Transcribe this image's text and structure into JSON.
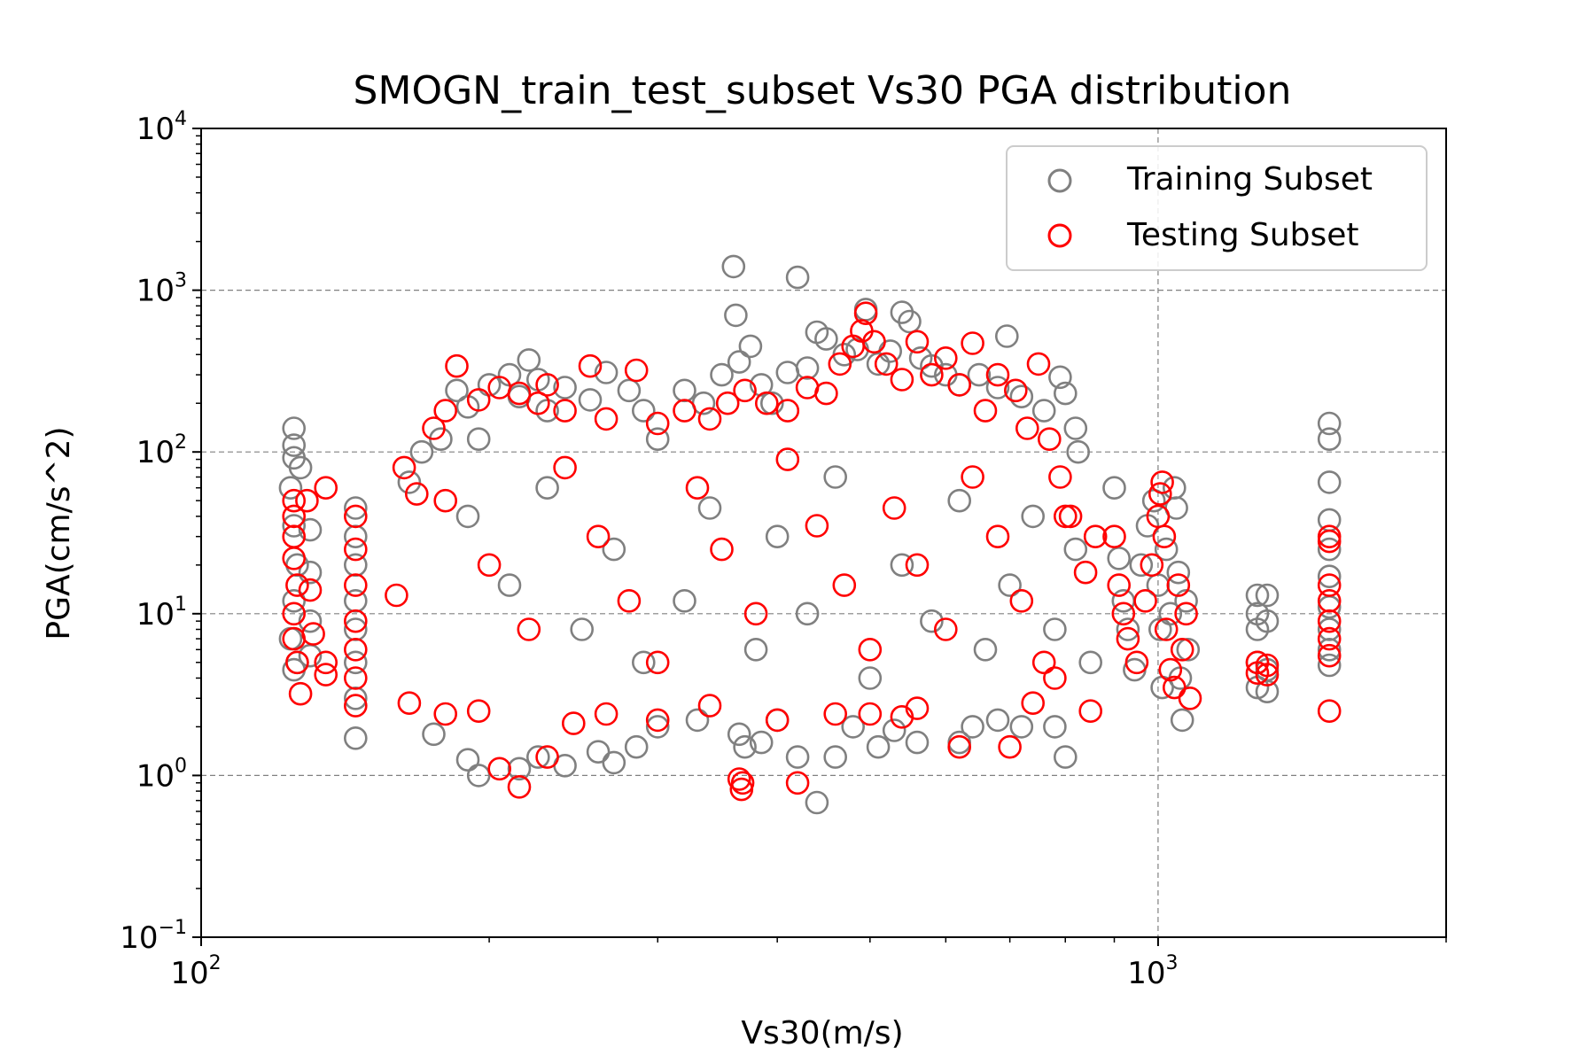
{
  "chart_data": {
    "type": "scatter",
    "title": "SMOGN_train_test_subset Vs30 PGA distribution",
    "xlabel": "Vs30(m/s)",
    "ylabel": "PGA(cm/s^2)",
    "x_scale": "log",
    "y_scale": "log",
    "xlim": [
      100,
      2000
    ],
    "ylim": [
      0.1,
      10000
    ],
    "x_ticks": [
      {
        "value": 100,
        "base": "10",
        "exp": "2"
      },
      {
        "value": 1000,
        "base": "10",
        "exp": "3"
      }
    ],
    "y_ticks": [
      {
        "value": 0.1,
        "base": "10",
        "exp": "−1"
      },
      {
        "value": 1,
        "base": "10",
        "exp": "0"
      },
      {
        "value": 10,
        "base": "10",
        "exp": "1"
      },
      {
        "value": 100,
        "base": "10",
        "exp": "2"
      },
      {
        "value": 1000,
        "base": "10",
        "exp": "3"
      },
      {
        "value": 10000,
        "base": "10",
        "exp": "4"
      }
    ],
    "grid": "dashed",
    "legend_position": "top-right",
    "series": [
      {
        "name": "Training Subset",
        "color": "#808080",
        "marker": "hollow-circle",
        "points": [
          [
            125,
            140
          ],
          [
            125,
            110
          ],
          [
            125,
            92
          ],
          [
            127,
            80
          ],
          [
            124,
            60
          ],
          [
            125,
            35
          ],
          [
            126,
            20
          ],
          [
            125,
            12
          ],
          [
            124,
            7
          ],
          [
            126,
            5
          ],
          [
            125,
            4.5
          ],
          [
            130,
            33
          ],
          [
            130,
            18
          ],
          [
            130,
            9
          ],
          [
            130,
            5.5
          ],
          [
            145,
            45
          ],
          [
            145,
            30
          ],
          [
            145,
            20
          ],
          [
            145,
            12
          ],
          [
            145,
            8
          ],
          [
            145,
            5
          ],
          [
            145,
            3
          ],
          [
            145,
            1.7
          ],
          [
            165,
            65
          ],
          [
            170,
            100
          ],
          [
            178,
            120
          ],
          [
            185,
            240
          ],
          [
            190,
            190
          ],
          [
            195,
            120
          ],
          [
            200,
            260
          ],
          [
            210,
            300
          ],
          [
            215,
            220
          ],
          [
            220,
            370
          ],
          [
            225,
            280
          ],
          [
            230,
            180
          ],
          [
            240,
            250
          ],
          [
            255,
            210
          ],
          [
            265,
            310
          ],
          [
            280,
            240
          ],
          [
            290,
            180
          ],
          [
            300,
            120
          ],
          [
            320,
            240
          ],
          [
            335,
            200
          ],
          [
            350,
            300
          ],
          [
            360,
            1400
          ],
          [
            362,
            700
          ],
          [
            365,
            360
          ],
          [
            375,
            450
          ],
          [
            385,
            260
          ],
          [
            395,
            200
          ],
          [
            410,
            310
          ],
          [
            420,
            1200
          ],
          [
            430,
            330
          ],
          [
            440,
            550
          ],
          [
            450,
            500
          ],
          [
            470,
            400
          ],
          [
            485,
            430
          ],
          [
            495,
            760
          ],
          [
            510,
            350
          ],
          [
            525,
            420
          ],
          [
            540,
            730
          ],
          [
            550,
            640
          ],
          [
            565,
            380
          ],
          [
            580,
            340
          ],
          [
            600,
            300
          ],
          [
            620,
            260
          ],
          [
            650,
            300
          ],
          [
            680,
            250
          ],
          [
            695,
            520
          ],
          [
            720,
            220
          ],
          [
            760,
            180
          ],
          [
            790,
            290
          ],
          [
            800,
            230
          ],
          [
            820,
            140
          ],
          [
            825,
            100
          ],
          [
            175,
            1.8
          ],
          [
            190,
            1.25
          ],
          [
            195,
            1.0
          ],
          [
            215,
            1.1
          ],
          [
            225,
            1.3
          ],
          [
            240,
            1.15
          ],
          [
            260,
            1.4
          ],
          [
            270,
            1.2
          ],
          [
            285,
            1.5
          ],
          [
            300,
            2.0
          ],
          [
            330,
            2.2
          ],
          [
            365,
            1.8
          ],
          [
            370,
            1.5
          ],
          [
            385,
            1.6
          ],
          [
            400,
            2.2
          ],
          [
            420,
            1.3
          ],
          [
            440,
            0.68
          ],
          [
            460,
            1.3
          ],
          [
            480,
            2.0
          ],
          [
            510,
            1.5
          ],
          [
            530,
            1.9
          ],
          [
            560,
            1.6
          ],
          [
            620,
            1.6
          ],
          [
            640,
            2.0
          ],
          [
            680,
            2.2
          ],
          [
            720,
            2.0
          ],
          [
            780,
            2.0
          ],
          [
            800,
            1.3
          ],
          [
            190,
            40
          ],
          [
            210,
            15
          ],
          [
            230,
            60
          ],
          [
            250,
            8
          ],
          [
            270,
            25
          ],
          [
            290,
            5
          ],
          [
            320,
            12
          ],
          [
            340,
            45
          ],
          [
            380,
            6
          ],
          [
            400,
            30
          ],
          [
            430,
            10
          ],
          [
            460,
            70
          ],
          [
            500,
            4
          ],
          [
            540,
            20
          ],
          [
            580,
            9
          ],
          [
            620,
            50
          ],
          [
            660,
            6
          ],
          [
            700,
            15
          ],
          [
            740,
            40
          ],
          [
            780,
            8
          ],
          [
            820,
            25
          ],
          [
            850,
            5
          ],
          [
            900,
            60
          ],
          [
            910,
            22
          ],
          [
            920,
            12
          ],
          [
            930,
            8
          ],
          [
            945,
            4.5
          ],
          [
            960,
            20
          ],
          [
            975,
            35
          ],
          [
            990,
            50
          ],
          [
            1000,
            15
          ],
          [
            1005,
            8
          ],
          [
            1010,
            3.5
          ],
          [
            1020,
            25
          ],
          [
            1030,
            10
          ],
          [
            1040,
            60
          ],
          [
            1045,
            45
          ],
          [
            1050,
            18
          ],
          [
            1055,
            4
          ],
          [
            1060,
            2.2
          ],
          [
            1070,
            12
          ],
          [
            1075,
            6
          ],
          [
            1270,
            13
          ],
          [
            1270,
            10
          ],
          [
            1270,
            8
          ],
          [
            1270,
            5
          ],
          [
            1270,
            3.5
          ],
          [
            1300,
            13
          ],
          [
            1300,
            9
          ],
          [
            1300,
            4.5
          ],
          [
            1300,
            3.3
          ],
          [
            1510,
            150
          ],
          [
            1510,
            120
          ],
          [
            1510,
            65
          ],
          [
            1510,
            38
          ],
          [
            1510,
            25
          ],
          [
            1510,
            17
          ],
          [
            1510,
            11
          ],
          [
            1510,
            8
          ],
          [
            1510,
            6
          ],
          [
            1510,
            4.8
          ]
        ]
      },
      {
        "name": "Testing Subset",
        "color": "#ff0000",
        "marker": "hollow-circle",
        "points": [
          [
            125,
            50
          ],
          [
            125,
            40
          ],
          [
            125,
            30
          ],
          [
            125,
            22
          ],
          [
            126,
            15
          ],
          [
            125,
            10
          ],
          [
            125,
            7
          ],
          [
            126,
            5
          ],
          [
            127,
            3.2
          ],
          [
            129,
            50
          ],
          [
            130,
            14
          ],
          [
            131,
            7.5
          ],
          [
            135,
            60
          ],
          [
            135,
            5
          ],
          [
            135,
            4.2
          ],
          [
            145,
            40
          ],
          [
            145,
            25
          ],
          [
            145,
            15
          ],
          [
            145,
            9
          ],
          [
            145,
            6
          ],
          [
            145,
            4
          ],
          [
            145,
            2.7
          ],
          [
            160,
            13
          ],
          [
            163,
            80
          ],
          [
            168,
            55
          ],
          [
            175,
            140
          ],
          [
            180,
            180
          ],
          [
            185,
            340
          ],
          [
            195,
            210
          ],
          [
            205,
            250
          ],
          [
            215,
            230
          ],
          [
            225,
            200
          ],
          [
            230,
            260
          ],
          [
            240,
            180
          ],
          [
            255,
            340
          ],
          [
            265,
            160
          ],
          [
            285,
            320
          ],
          [
            300,
            150
          ],
          [
            320,
            180
          ],
          [
            340,
            160
          ],
          [
            355,
            200
          ],
          [
            370,
            240
          ],
          [
            390,
            200
          ],
          [
            410,
            180
          ],
          [
            430,
            250
          ],
          [
            450,
            230
          ],
          [
            465,
            350
          ],
          [
            480,
            450
          ],
          [
            490,
            560
          ],
          [
            495,
            720
          ],
          [
            505,
            480
          ],
          [
            520,
            350
          ],
          [
            540,
            280
          ],
          [
            560,
            480
          ],
          [
            580,
            300
          ],
          [
            600,
            380
          ],
          [
            620,
            260
          ],
          [
            640,
            470
          ],
          [
            660,
            180
          ],
          [
            680,
            300
          ],
          [
            710,
            240
          ],
          [
            730,
            140
          ],
          [
            750,
            350
          ],
          [
            770,
            120
          ],
          [
            790,
            70
          ],
          [
            810,
            40
          ],
          [
            165,
            2.8
          ],
          [
            180,
            2.4
          ],
          [
            195,
            2.5
          ],
          [
            205,
            1.1
          ],
          [
            215,
            0.85
          ],
          [
            230,
            1.3
          ],
          [
            245,
            2.1
          ],
          [
            265,
            2.4
          ],
          [
            300,
            2.2
          ],
          [
            340,
            2.7
          ],
          [
            365,
            0.95
          ],
          [
            367,
            0.82
          ],
          [
            368,
            0.9
          ],
          [
            400,
            2.2
          ],
          [
            420,
            0.9
          ],
          [
            460,
            2.4
          ],
          [
            500,
            2.4
          ],
          [
            540,
            2.3
          ],
          [
            560,
            2.6
          ],
          [
            620,
            1.5
          ],
          [
            700,
            1.5
          ],
          [
            740,
            2.8
          ],
          [
            780,
            4.0
          ],
          [
            850,
            2.5
          ],
          [
            180,
            50
          ],
          [
            200,
            20
          ],
          [
            220,
            8
          ],
          [
            240,
            80
          ],
          [
            260,
            30
          ],
          [
            280,
            12
          ],
          [
            300,
            5
          ],
          [
            330,
            60
          ],
          [
            350,
            25
          ],
          [
            380,
            10
          ],
          [
            410,
            90
          ],
          [
            440,
            35
          ],
          [
            470,
            15
          ],
          [
            500,
            6
          ],
          [
            530,
            45
          ],
          [
            560,
            20
          ],
          [
            600,
            8
          ],
          [
            640,
            70
          ],
          [
            680,
            30
          ],
          [
            720,
            12
          ],
          [
            760,
            5
          ],
          [
            800,
            40
          ],
          [
            840,
            18
          ],
          [
            860,
            30
          ],
          [
            900,
            30
          ],
          [
            910,
            15
          ],
          [
            920,
            10
          ],
          [
            930,
            7
          ],
          [
            950,
            5
          ],
          [
            970,
            12
          ],
          [
            985,
            20
          ],
          [
            1000,
            40
          ],
          [
            1005,
            55
          ],
          [
            1010,
            65
          ],
          [
            1015,
            30
          ],
          [
            1020,
            8
          ],
          [
            1030,
            4.5
          ],
          [
            1040,
            3.5
          ],
          [
            1050,
            15
          ],
          [
            1060,
            6
          ],
          [
            1070,
            10
          ],
          [
            1080,
            3.0
          ],
          [
            1270,
            5
          ],
          [
            1270,
            4.3
          ],
          [
            1300,
            4.8
          ],
          [
            1300,
            4.2
          ],
          [
            1510,
            30
          ],
          [
            1510,
            28
          ],
          [
            1510,
            15
          ],
          [
            1510,
            12
          ],
          [
            1510,
            9
          ],
          [
            1510,
            7
          ],
          [
            1510,
            5.5
          ],
          [
            1510,
            2.5
          ]
        ]
      }
    ]
  }
}
